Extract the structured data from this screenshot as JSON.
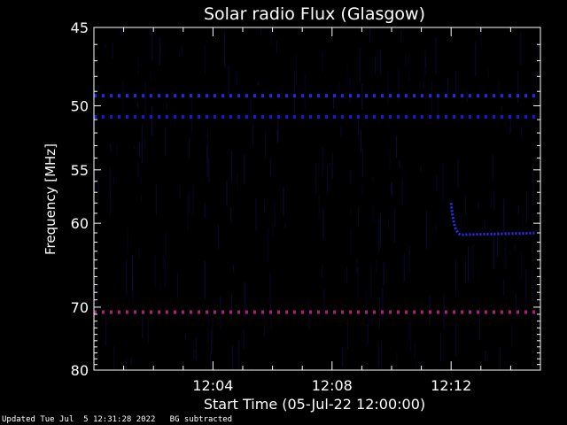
{
  "chart_data": {
    "type": "heatmap",
    "title": "Solar radio Flux (Glasgow)",
    "ylabel": "Frequency [MHz]",
    "xlabel": "Start Time (05-Jul-22 12:00:00)",
    "x_range_minutes": [
      0,
      15
    ],
    "x_ticks": [
      {
        "minute": 4,
        "label": "12:04"
      },
      {
        "minute": 8,
        "label": "12:08"
      },
      {
        "minute": 12,
        "label": "12:12"
      }
    ],
    "y_range_mhz": [
      45,
      80
    ],
    "y_axis_inverted": true,
    "y_ticks": [
      {
        "mhz": 45,
        "label": "45"
      },
      {
        "mhz": 50,
        "label": "50"
      },
      {
        "mhz": 55,
        "label": "55"
      },
      {
        "mhz": 60,
        "label": "60"
      },
      {
        "mhz": 70,
        "label": "70"
      },
      {
        "mhz": 80,
        "label": "80"
      }
    ],
    "background_color": "#000000",
    "features": [
      {
        "kind": "band",
        "mhz": 49.3,
        "x_start_min": 0,
        "x_end_min": 15,
        "color": "#2a2aff",
        "dotted": true
      },
      {
        "kind": "band",
        "mhz": 50.8,
        "x_start_min": 0,
        "x_end_min": 15,
        "color": "#1a1aee",
        "dotted": true
      },
      {
        "kind": "band",
        "mhz": 70.7,
        "x_start_min": 0,
        "x_end_min": 15,
        "color": "#c0208a",
        "dotted": true
      },
      {
        "kind": "burst",
        "mhz_start": 58.0,
        "mhz_end": 61.2,
        "x_start_min": 12.0,
        "x_end_min": 14.8,
        "color": "#2b2bff"
      }
    ]
  },
  "footer": {
    "updated": "Updated Tue Jul  5 12:31:28 2022",
    "note": "BG subtracted"
  },
  "colors": {
    "axis": "#ffffff",
    "noise": "#0b0b3a"
  }
}
